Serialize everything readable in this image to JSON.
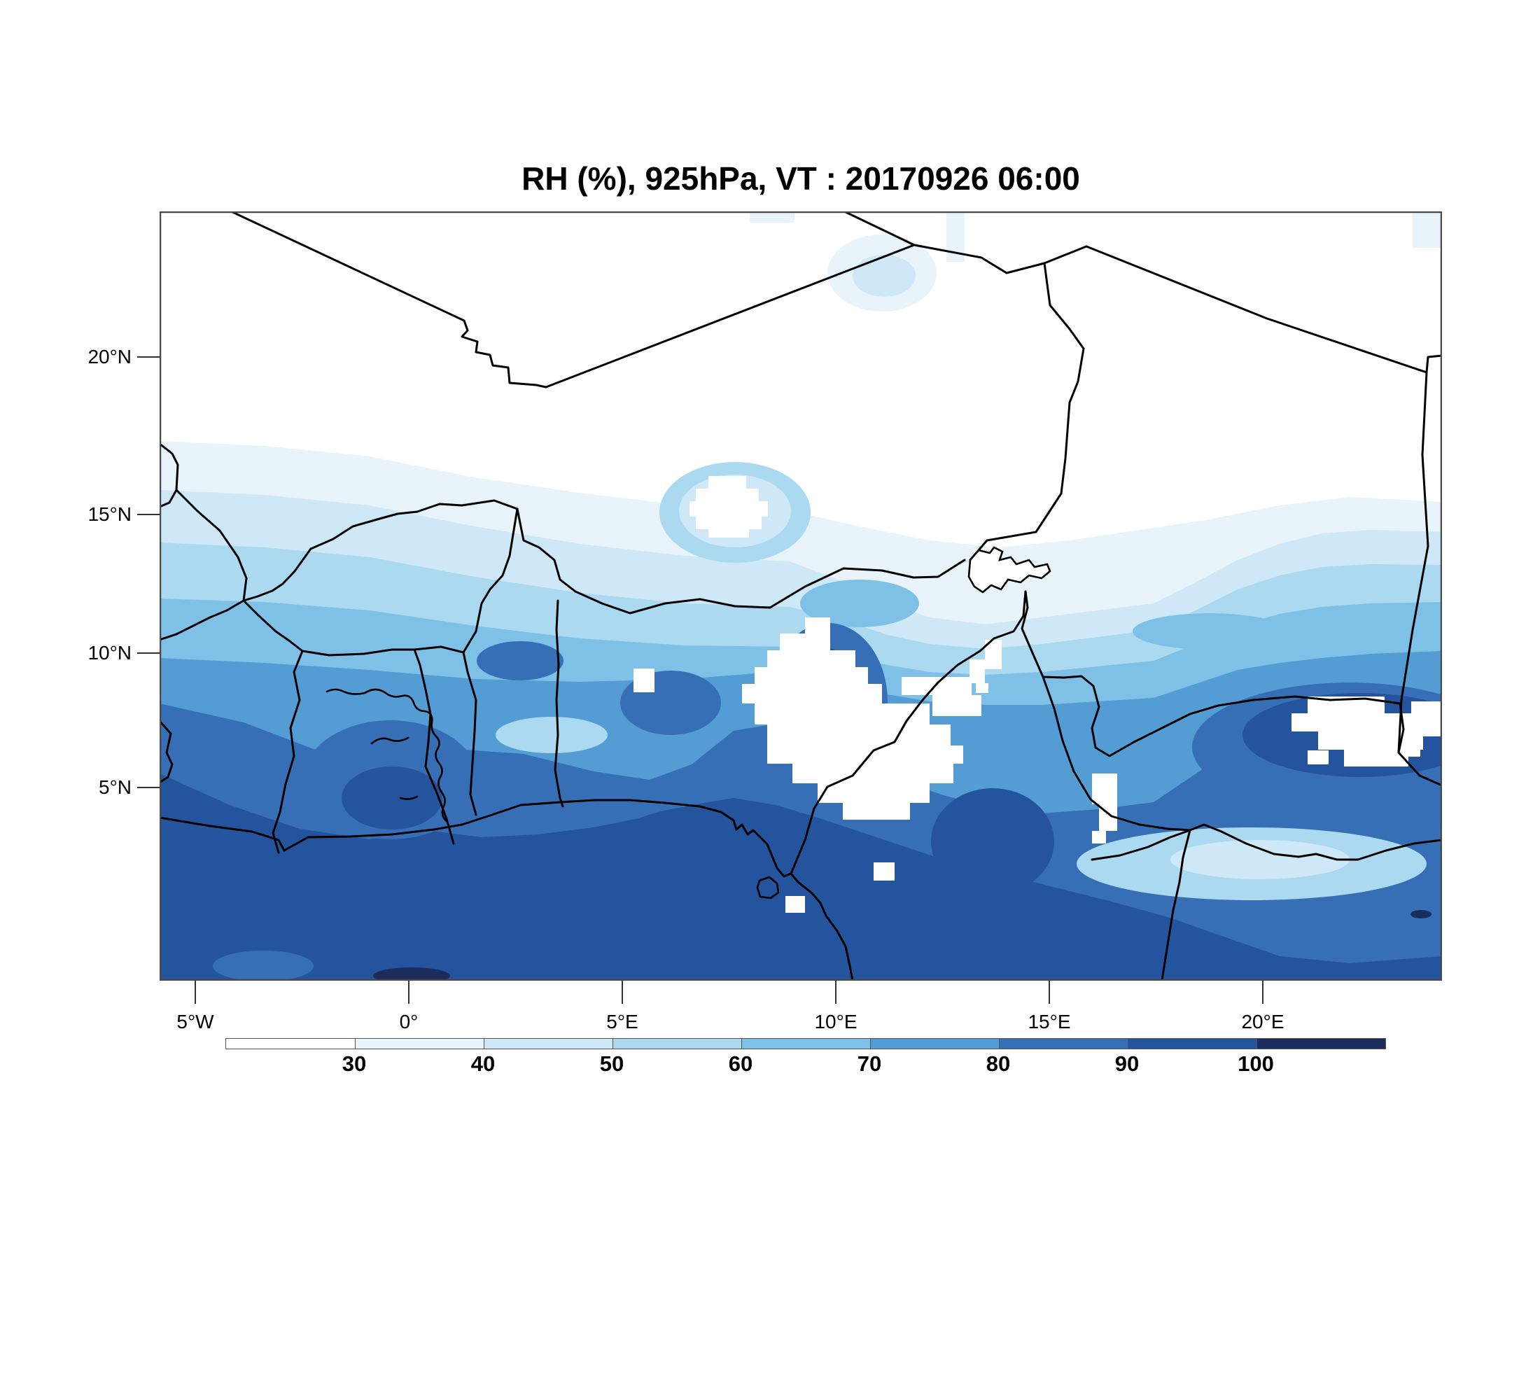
{
  "title": "RH (%), 925hPa, VT : 20170926  06:00",
  "axes": {
    "lat_ticks": [
      "20°N",
      "15°N",
      "10°N",
      "5°N"
    ],
    "lon_ticks": [
      "5°W",
      "0°",
      "5°E",
      "10°E",
      "15°E",
      "20°E"
    ]
  },
  "colorbar": {
    "variable": "RH (%)",
    "tick_labels": [
      "30",
      "40",
      "50",
      "60",
      "70",
      "80",
      "90",
      "100"
    ],
    "levels": [
      30,
      40,
      50,
      60,
      70,
      80,
      90,
      100
    ],
    "colors": [
      "#ffffff",
      "#e8f3fa",
      "#cfe8f7",
      "#abd9f0",
      "#7fc1e6",
      "#549dd4",
      "#366fb5",
      "#24549e",
      "#1b2d5c"
    ]
  }
}
